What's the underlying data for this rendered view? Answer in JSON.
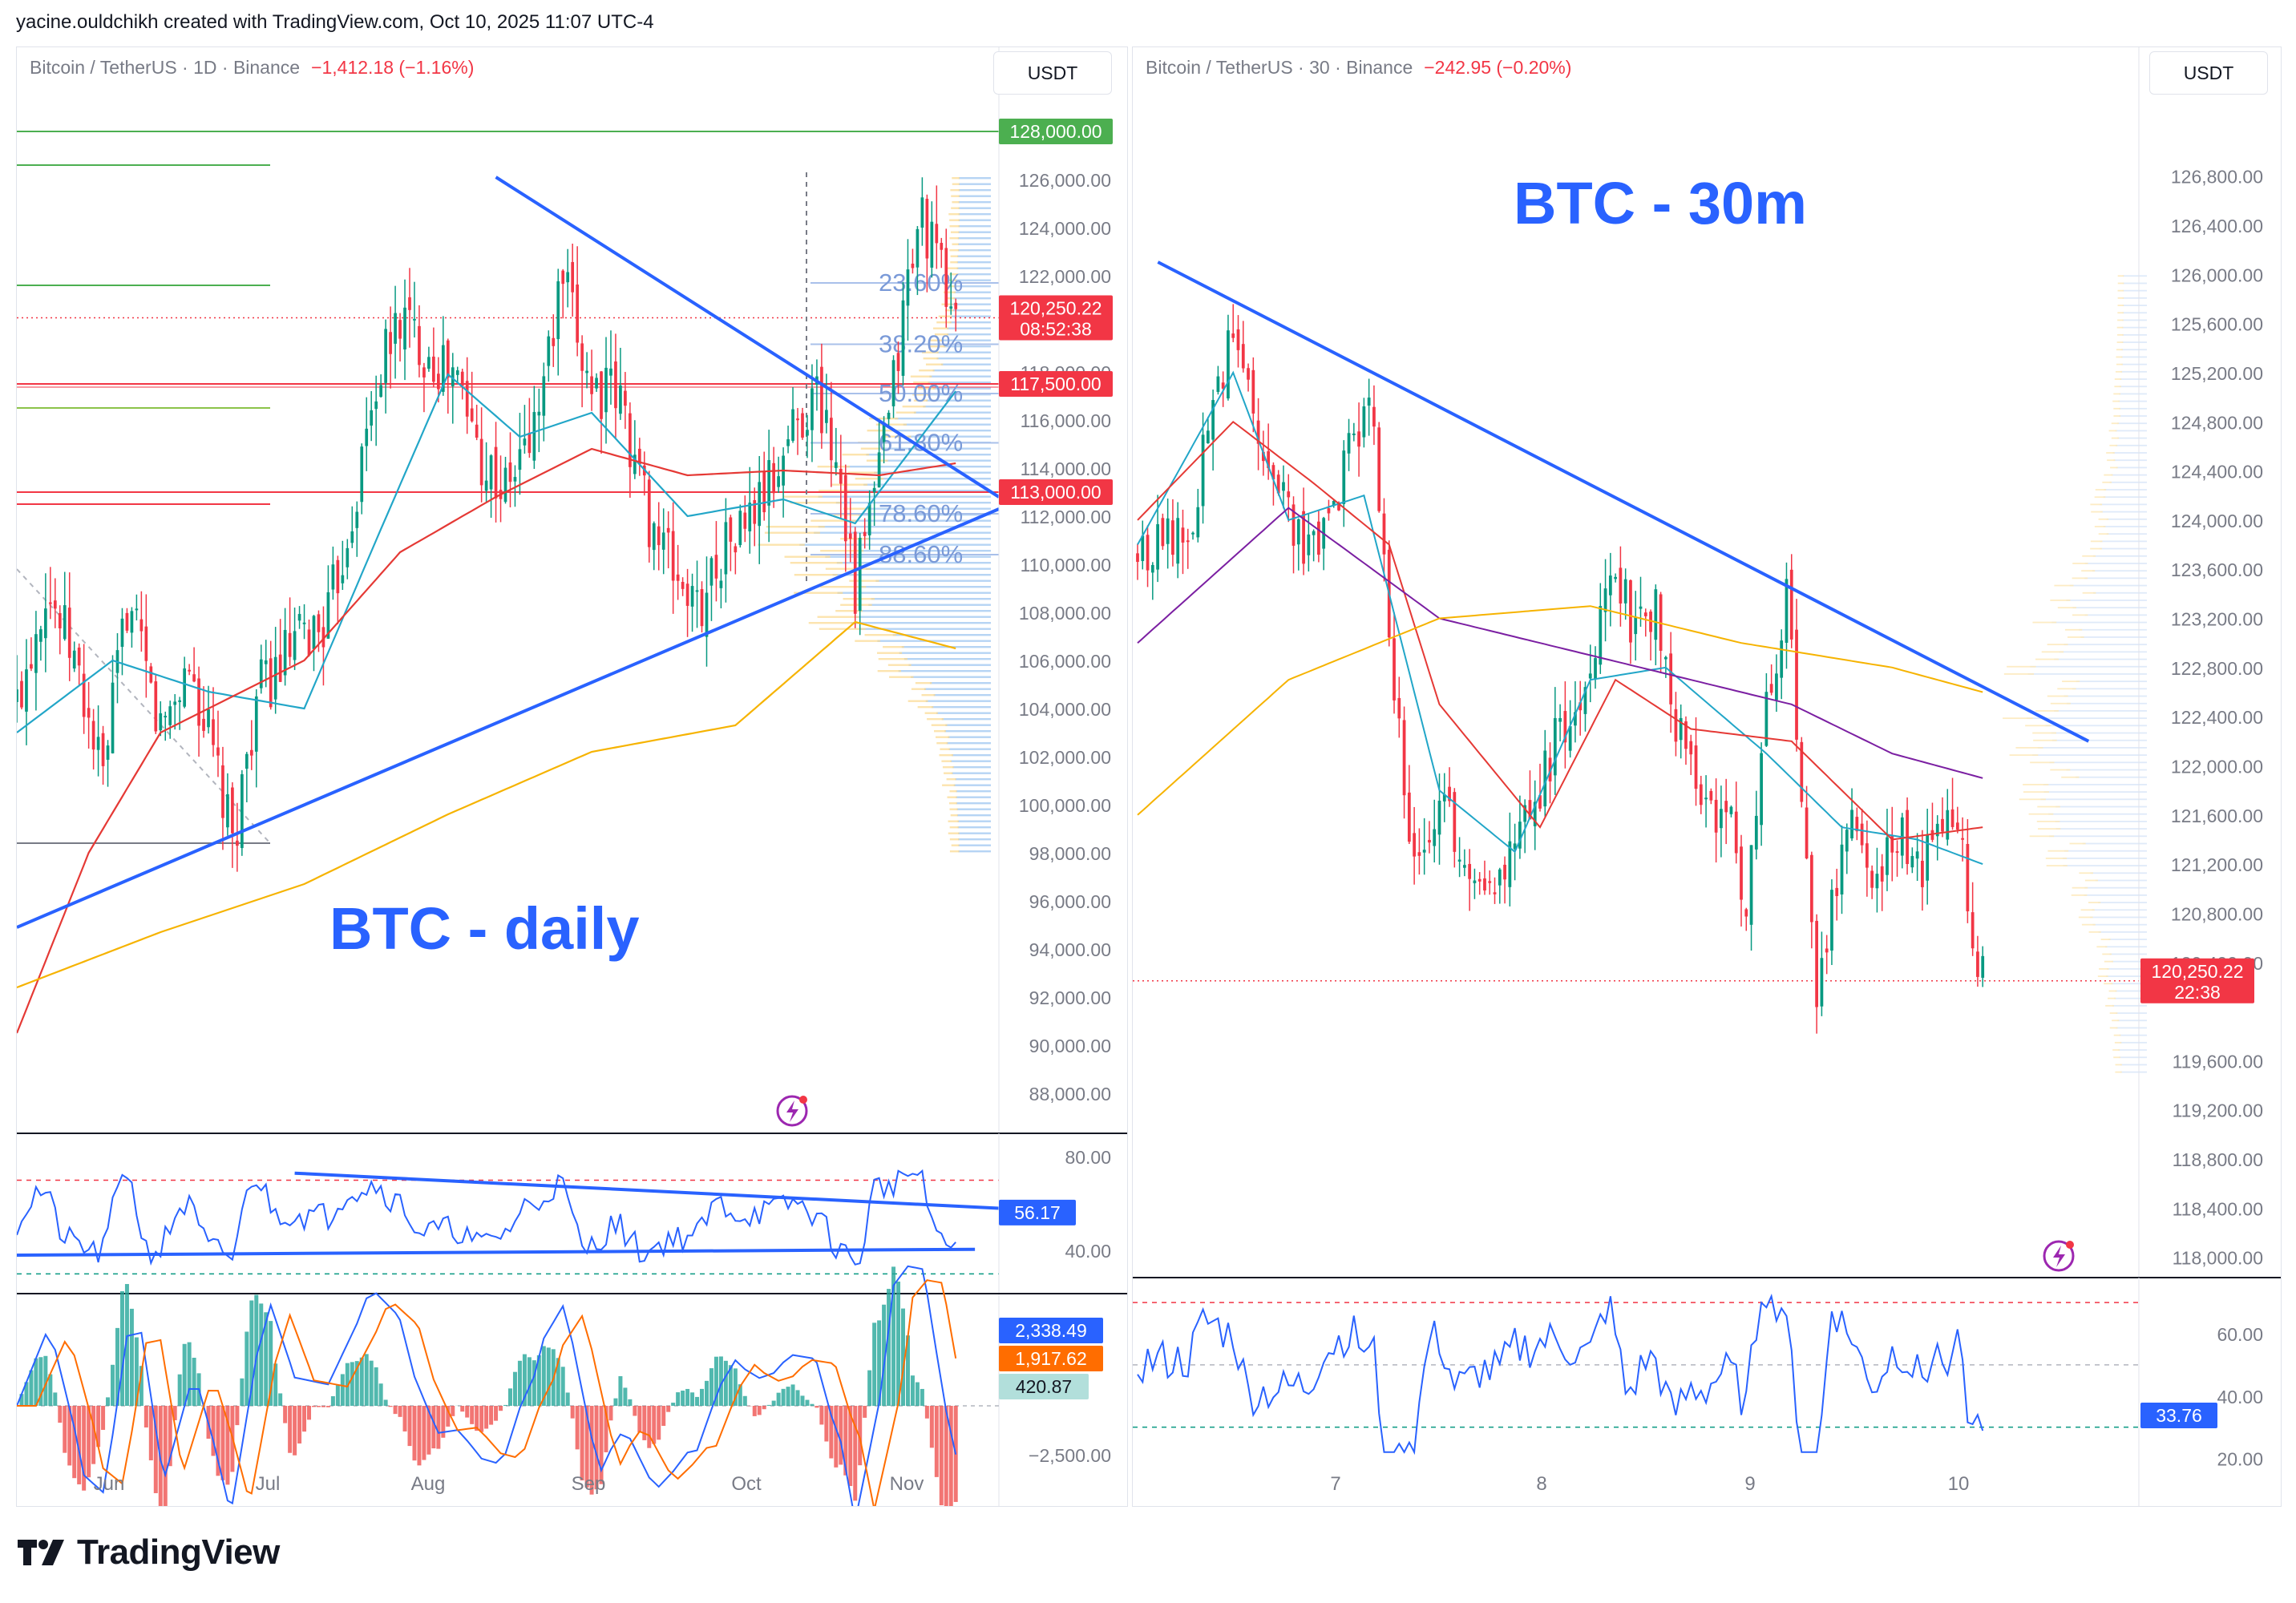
{
  "header": {
    "attribution": "yacine.ouldchikh created with TradingView.com, Oct 10, 2025 11:07 UTC-4"
  },
  "brand": {
    "name": "TradingView"
  },
  "colors": {
    "up": "#089981",
    "down": "#f23645",
    "trend": "#2962ff",
    "fib": "#6d8ed6",
    "ma_fast": "#22a6c8",
    "ma_mid": "#e53935",
    "ma_slow": "#f6b300",
    "ma_purple": "#7b1fa2",
    "green_level": "#4caf50",
    "red_level": "#f23645"
  },
  "left": {
    "legend": {
      "symbol": "Bitcoin / TetherUS · 1D · Binance",
      "change": "−1,412.18 (−1.16%)"
    },
    "currency": "USDT",
    "title": "BTC - daily",
    "price_ticks": [
      "126,000.00",
      "124,000.00",
      "122,000.00",
      "118,000.00",
      "116,000.00",
      "114,000.00",
      "112,000.00",
      "110,000.00",
      "108,000.00",
      "106,000.00",
      "104,000.00",
      "102,000.00",
      "100,000.00",
      "98,000.00",
      "96,000.00",
      "94,000.00",
      "92,000.00",
      "90,000.00",
      "88,000.00"
    ],
    "badges": {
      "top_level": "128,000.00",
      "last_price": "120,250.22",
      "countdown": "08:52:38",
      "resistance": "117,500.00",
      "support": "113,000.00"
    },
    "fib_levels": [
      "23.60%",
      "38.20%",
      "50.00%",
      "61.80%",
      "78.60%",
      "88.60%"
    ],
    "rsi": {
      "ticks": [
        "80.00",
        "40.00"
      ],
      "value": "56.17"
    },
    "macd": {
      "ticks": [
        "−2,500.00"
      ],
      "macd": "2,338.49",
      "signal": "1,917.62",
      "hist": "420.87"
    },
    "time_labels": [
      "Jun",
      "Jul",
      "Aug",
      "Sep",
      "Oct",
      "Nov"
    ]
  },
  "right": {
    "legend": {
      "symbol": "Bitcoin / TetherUS · 30 · Binance",
      "change": "−242.95 (−0.20%)"
    },
    "currency": "USDT",
    "title": "BTC - 30m",
    "price_ticks": [
      "126,800.00",
      "126,400.00",
      "126,000.00",
      "125,600.00",
      "125,200.00",
      "124,800.00",
      "124,400.00",
      "124,000.00",
      "123,600.00",
      "123,200.00",
      "122,800.00",
      "122,400.00",
      "122,000.00",
      "121,600.00",
      "121,200.00",
      "120,800.00",
      "120,400.00",
      "119,600.00",
      "119,200.00",
      "118,800.00",
      "118,400.00",
      "118,000.00"
    ],
    "badges": {
      "last_price": "120,250.22",
      "countdown": "22:38"
    },
    "rsi": {
      "ticks": [
        "60.00",
        "40.00",
        "20.00"
      ],
      "value": "33.76"
    },
    "time_labels": [
      "7",
      "8",
      "9",
      "10"
    ]
  },
  "chart_data": [
    {
      "type": "candlestick",
      "title": "BTC - daily",
      "subtitle": "Bitcoin / TetherUS · 1D · Binance",
      "ylim": [
        86500,
        129500
      ],
      "levels": {
        "green": 128000,
        "resistance": 117500,
        "support": 113000,
        "last": 120250.22
      },
      "fib_retracement": {
        "23.60%": 121700,
        "38.20%": 119150,
        "50.00%": 117100,
        "61.80%": 115050,
        "78.60%": 112100,
        "88.60%": 110400
      },
      "close_path": [
        [
          0,
          104200
        ],
        [
          6,
          109200
        ],
        [
          12,
          106000
        ],
        [
          18,
          101000
        ],
        [
          23,
          108400
        ],
        [
          30,
          103100
        ],
        [
          36,
          105800
        ],
        [
          41,
          102000
        ],
        [
          45,
          98200
        ],
        [
          50,
          104500
        ],
        [
          57,
          106300
        ],
        [
          65,
          107800
        ],
        [
          71,
          113200
        ],
        [
          75,
          117500
        ],
        [
          80,
          120300
        ],
        [
          86,
          118800
        ],
        [
          92,
          117600
        ],
        [
          97,
          114500
        ],
        [
          102,
          113000
        ],
        [
          108,
          115700
        ],
        [
          114,
          121800
        ],
        [
          116,
          120100
        ],
        [
          120,
          117500
        ],
        [
          126,
          116800
        ],
        [
          132,
          112000
        ],
        [
          137,
          109800
        ],
        [
          142,
          108000
        ],
        [
          147,
          110600
        ],
        [
          152,
          111600
        ],
        [
          158,
          113500
        ],
        [
          162,
          115800
        ],
        [
          167,
          117100
        ],
        [
          172,
          113800
        ],
        [
          175,
          109000
        ],
        [
          178,
          112000
        ],
        [
          182,
          116000
        ],
        [
          186,
          121800
        ],
        [
          189,
          124600
        ],
        [
          192,
          122600
        ],
        [
          196,
          120250
        ]
      ],
      "ma_fast": [
        [
          0,
          103000
        ],
        [
          20,
          106000
        ],
        [
          40,
          104700
        ],
        [
          60,
          104000
        ],
        [
          75,
          111000
        ],
        [
          90,
          117900
        ],
        [
          105,
          115300
        ],
        [
          120,
          116300
        ],
        [
          140,
          112000
        ],
        [
          160,
          112700
        ],
        [
          175,
          111700
        ],
        [
          196,
          117200
        ]
      ],
      "ma_mid": [
        [
          0,
          90500
        ],
        [
          15,
          98000
        ],
        [
          30,
          103000
        ],
        [
          60,
          106000
        ],
        [
          80,
          110500
        ],
        [
          100,
          112800
        ],
        [
          120,
          114800
        ],
        [
          140,
          113700
        ],
        [
          160,
          113900
        ],
        [
          180,
          113700
        ],
        [
          196,
          114200
        ]
      ],
      "ma_slow": [
        [
          0,
          92400
        ],
        [
          30,
          94700
        ],
        [
          60,
          96700
        ],
        [
          90,
          99600
        ],
        [
          120,
          102200
        ],
        [
          150,
          103300
        ],
        [
          175,
          107600
        ],
        [
          196,
          106500
        ]
      ],
      "trendlines": [
        [
          [
            0,
            94900
          ],
          [
            205,
            112300
          ]
        ],
        [
          [
            100,
            126100
          ],
          [
            205,
            112800
          ]
        ]
      ],
      "rsi": {
        "ticks": [
          80,
          40
        ],
        "last": 56.17
      },
      "macd": {
        "macd": 2338.49,
        "signal": 1917.62,
        "hist": 420.87,
        "tick": -2500
      },
      "x_labels": [
        "Jun",
        "Jul",
        "Aug",
        "Sep",
        "Oct",
        "Nov"
      ]
    },
    {
      "type": "candlestick",
      "title": "BTC - 30m",
      "subtitle": "Bitcoin / TetherUS · 30 · Binance",
      "ylim": [
        117900,
        127000
      ],
      "levels": {
        "last": 120250.22
      },
      "close_path": [
        [
          0,
          123700
        ],
        [
          10,
          123900
        ],
        [
          15,
          124900
        ],
        [
          19,
          125500
        ],
        [
          24,
          124800
        ],
        [
          29,
          124200
        ],
        [
          34,
          123700
        ],
        [
          38,
          124000
        ],
        [
          43,
          124700
        ],
        [
          47,
          124900
        ],
        [
          50,
          123000
        ],
        [
          55,
          121200
        ],
        [
          60,
          121800
        ],
        [
          65,
          121300
        ],
        [
          72,
          121100
        ],
        [
          78,
          121600
        ],
        [
          84,
          122300
        ],
        [
          90,
          122600
        ],
        [
          94,
          123700
        ],
        [
          98,
          123200
        ],
        [
          103,
          123300
        ],
        [
          107,
          122400
        ],
        [
          113,
          121700
        ],
        [
          118,
          121500
        ],
        [
          121,
          120900
        ],
        [
          125,
          122400
        ],
        [
          129,
          123500
        ],
        [
          132,
          121600
        ],
        [
          135,
          120000
        ],
        [
          138,
          120900
        ],
        [
          142,
          121500
        ],
        [
          147,
          121100
        ],
        [
          152,
          121400
        ],
        [
          156,
          121200
        ],
        [
          160,
          121400
        ],
        [
          163,
          121600
        ],
        [
          166,
          120600
        ],
        [
          168,
          120250
        ]
      ],
      "ma_fast": [
        [
          0,
          123800
        ],
        [
          19,
          125200
        ],
        [
          30,
          124000
        ],
        [
          45,
          124200
        ],
        [
          60,
          121800
        ],
        [
          75,
          121300
        ],
        [
          90,
          122700
        ],
        [
          105,
          122800
        ],
        [
          125,
          122100
        ],
        [
          140,
          121500
        ],
        [
          155,
          121400
        ],
        [
          168,
          121200
        ]
      ],
      "ma_mid": [
        [
          0,
          124000
        ],
        [
          19,
          124800
        ],
        [
          35,
          124300
        ],
        [
          50,
          123800
        ],
        [
          60,
          122500
        ],
        [
          80,
          121500
        ],
        [
          95,
          122700
        ],
        [
          110,
          122300
        ],
        [
          130,
          122200
        ],
        [
          150,
          121400
        ],
        [
          168,
          121500
        ]
      ],
      "ma_purple": [
        [
          0,
          123000
        ],
        [
          30,
          124100
        ],
        [
          60,
          123200
        ],
        [
          90,
          122900
        ],
        [
          110,
          122700
        ],
        [
          130,
          122500
        ],
        [
          150,
          122100
        ],
        [
          168,
          121900
        ]
      ],
      "ma_slow": [
        [
          0,
          121600
        ],
        [
          30,
          122700
        ],
        [
          60,
          123200
        ],
        [
          90,
          123300
        ],
        [
          120,
          123000
        ],
        [
          150,
          122800
        ],
        [
          168,
          122600
        ]
      ],
      "trendlines": [
        [
          [
            5,
            126100
          ],
          [
            190,
            122200
          ]
        ]
      ],
      "rsi": {
        "ticks": [
          60,
          40,
          20
        ],
        "last": 33.76
      },
      "x_labels": [
        "7",
        "8",
        "9",
        "10"
      ]
    }
  ]
}
